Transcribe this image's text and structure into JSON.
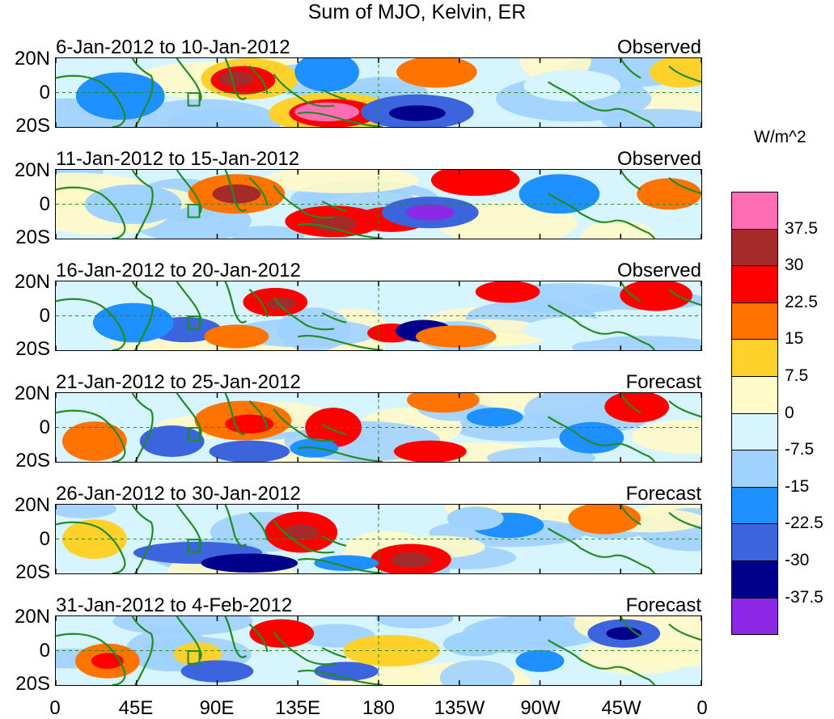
{
  "title": "Sum of MJO, Kelvin, ER",
  "units": "W/m^2",
  "panels": [
    {
      "date": "6-Jan-2012 to 10-Jan-2012",
      "status": "Observed"
    },
    {
      "date": "11-Jan-2012 to 15-Jan-2012",
      "status": "Observed"
    },
    {
      "date": "16-Jan-2012 to 20-Jan-2012",
      "status": "Observed"
    },
    {
      "date": "21-Jan-2012 to 25-Jan-2012",
      "status": "Forecast"
    },
    {
      "date": "26-Jan-2012 to 30-Jan-2012",
      "status": "Forecast"
    },
    {
      "date": "31-Jan-2012 to 4-Feb-2012",
      "status": "Forecast"
    }
  ],
  "lat_labels": [
    "20N",
    "0",
    "20S"
  ],
  "lon_labels": [
    "0",
    "45E",
    "90E",
    "135E",
    "180",
    "135W",
    "90W",
    "45W",
    "0"
  ],
  "colorbar": {
    "labels": [
      "37.5",
      "30",
      "22.5",
      "15",
      "7.5",
      "0",
      "-7.5",
      "-15",
      "-22.5",
      "-30",
      "-37.5"
    ],
    "colors": [
      "#ff6eb4",
      "#a52a2a",
      "#ff0000",
      "#ff7300",
      "#ffd22b",
      "#fffac8",
      "#d7f5ff",
      "#a0d2ff",
      "#1e90ff",
      "#3c64dc",
      "#00008b",
      "#8c28e6"
    ]
  },
  "map_style": {
    "coastline_color": "#228b22",
    "equator_line": "dashed",
    "dateline": "dashed",
    "marker_box": "square outline near 75E-80E, 0-5S"
  }
}
